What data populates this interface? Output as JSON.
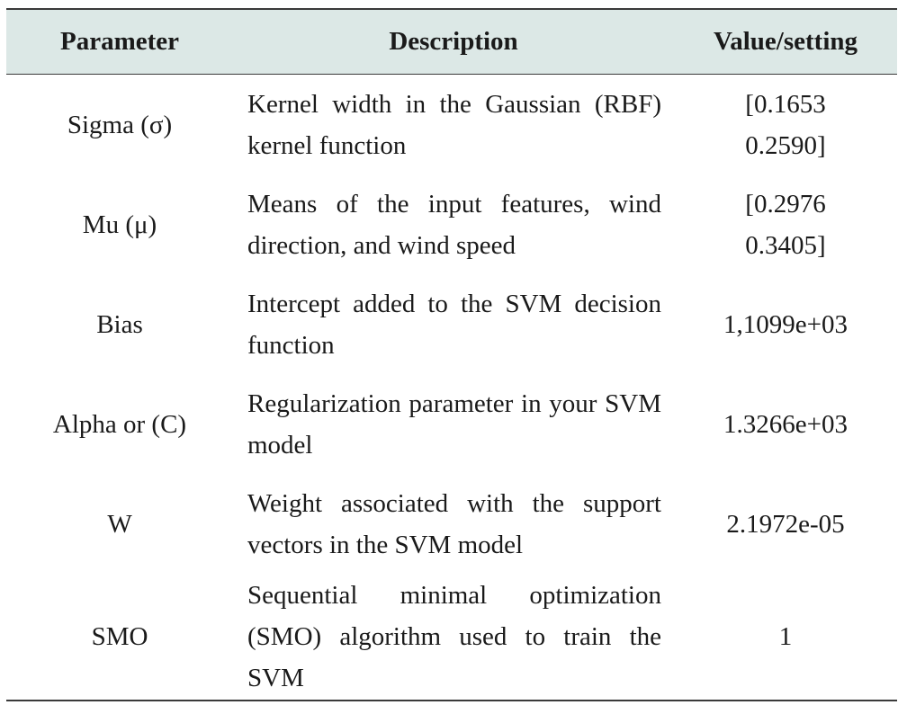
{
  "table": {
    "headers": {
      "parameter": "Parameter",
      "description": "Description",
      "value": "Value/setting"
    },
    "rows": [
      {
        "parameter": "Sigma (σ)",
        "description": "Kernel width in the Gaussian (RBF) kernel function",
        "value_lines": [
          "[0.1653",
          "0.2590]"
        ]
      },
      {
        "parameter": "Mu (μ)",
        "description": "Means of the input features, wind direction, and wind speed",
        "value_lines": [
          "[0.2976",
          "0.3405]"
        ]
      },
      {
        "parameter": "Bias",
        "description": "Intercept added to the SVM decision function",
        "value_lines": [
          "1,1099e+03"
        ]
      },
      {
        "parameter": "Alpha or (C)",
        "description": "Regularization parameter in your SVM model",
        "value_lines": [
          "1.3266e+03"
        ]
      },
      {
        "parameter": "W",
        "description": "Weight associated with the support vectors in the SVM model",
        "value_lines": [
          "2.1972e-05"
        ]
      },
      {
        "parameter": "SMO",
        "description": "Sequential minimal optimization (SMO) algorithm used to train the SVM",
        "value_lines": [
          "1"
        ]
      }
    ]
  },
  "colors": {
    "header_background": "#dce8e6",
    "rule": "#3a3a3a",
    "text": "#1a1a1a"
  }
}
